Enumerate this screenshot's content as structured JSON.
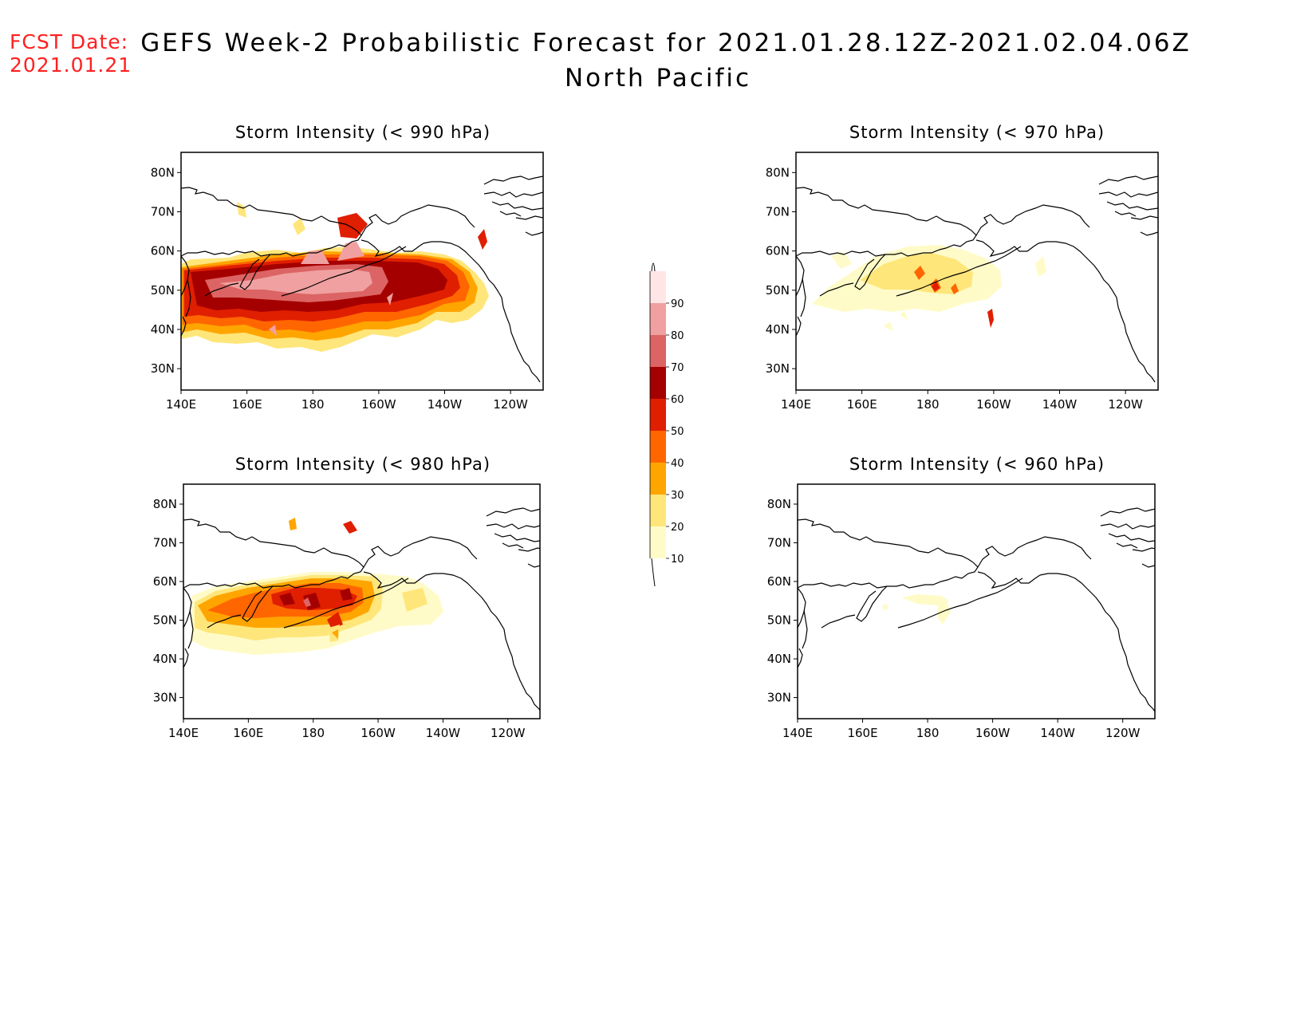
{
  "header": {
    "fcst_label": "FCST Date:",
    "fcst_date": "2021.01.21",
    "title": "GEFS Week-2 Probabilistic Forecast for 2021.01.28.12Z-2021.02.04.06Z",
    "subtitle": "North Pacific"
  },
  "axes": {
    "lat_labels": [
      "80N",
      "70N",
      "60N",
      "50N",
      "40N",
      "30N"
    ],
    "lon_labels": [
      "140E",
      "160E",
      "180",
      "160W",
      "140W",
      "120W"
    ]
  },
  "panels": [
    {
      "id": "p990",
      "title": "Storm Intensity (< 990 hPa)"
    },
    {
      "id": "p970",
      "title": "Storm Intensity (< 970 hPa)"
    },
    {
      "id": "p980",
      "title": "Storm Intensity (< 980 hPa)"
    },
    {
      "id": "p960",
      "title": "Storm Intensity (< 960 hPa)"
    }
  ],
  "colorbar": {
    "levels": [
      "10",
      "20",
      "30",
      "40",
      "50",
      "60",
      "70",
      "80",
      "90"
    ],
    "colors": [
      "#fffbc8",
      "#ffe67a",
      "#ffa500",
      "#ff6600",
      "#e01e00",
      "#a50000",
      "#dc6464",
      "#f0a0a0",
      "#ffe6e6"
    ]
  },
  "colors": {
    "fcst": "#ff2020",
    "coast": "#000000"
  }
}
